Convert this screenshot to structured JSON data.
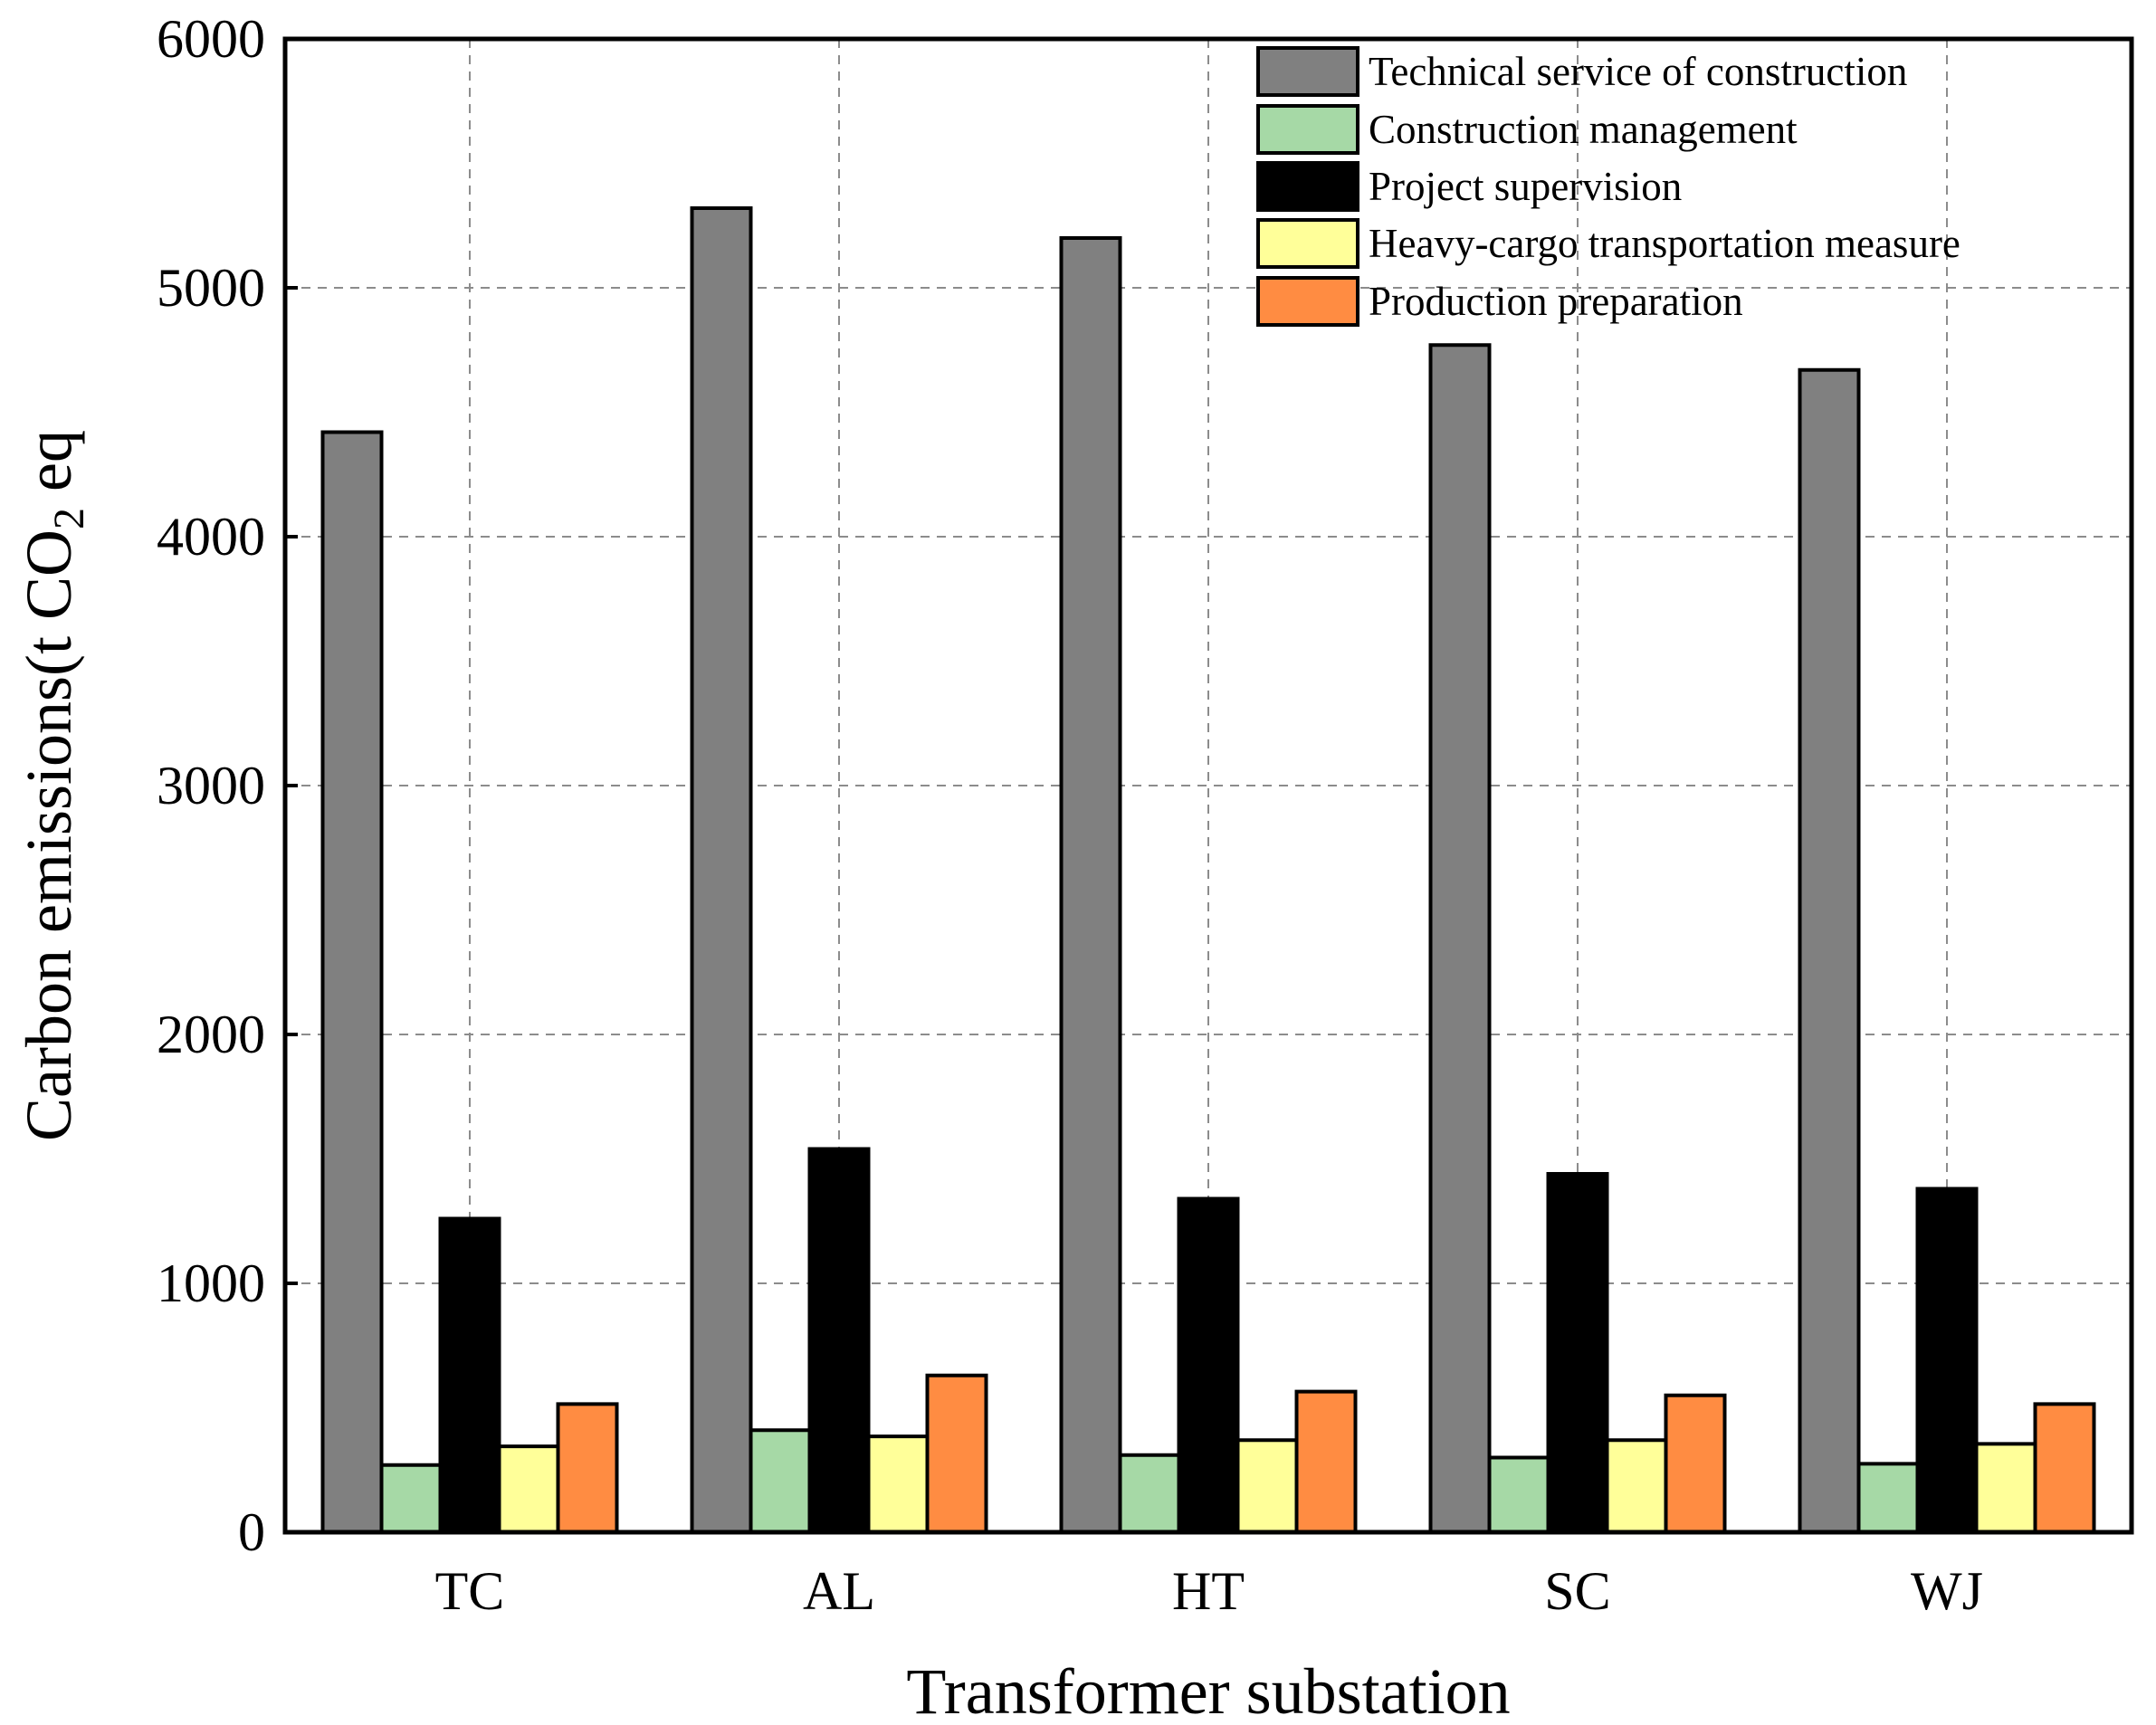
{
  "chart_data": {
    "type": "bar",
    "title": "",
    "xlabel": "Transformer substation",
    "ylabel": {
      "prefix": "Carbon emissions(t CO",
      "subscript": "2",
      "suffix": " eq"
    },
    "ylim": [
      0,
      6000
    ],
    "yticks": [
      "0",
      "1000",
      "2000",
      "3000",
      "4000",
      "5000",
      "6000"
    ],
    "grid": true,
    "legend_position": "top-right",
    "categories": [
      "TC",
      "AL",
      "HT",
      "SC",
      "WJ"
    ],
    "series": [
      {
        "name": "Technical service of construction",
        "color": "#808080",
        "values": [
          4420,
          5320,
          5200,
          4770,
          4670
        ]
      },
      {
        "name": "Construction management",
        "color": "#a6d9a6",
        "values": [
          270,
          410,
          310,
          300,
          275
        ]
      },
      {
        "name": "Project supervision",
        "color": "#000000",
        "values": [
          1260,
          1540,
          1340,
          1440,
          1380
        ]
      },
      {
        "name": "Heavy-cargo transportation measure",
        "color": "#ffff99",
        "values": [
          345,
          385,
          370,
          370,
          355
        ]
      },
      {
        "name": "Production preparation",
        "color": "#ff8c42",
        "values": [
          515,
          630,
          565,
          550,
          515
        ]
      }
    ]
  }
}
